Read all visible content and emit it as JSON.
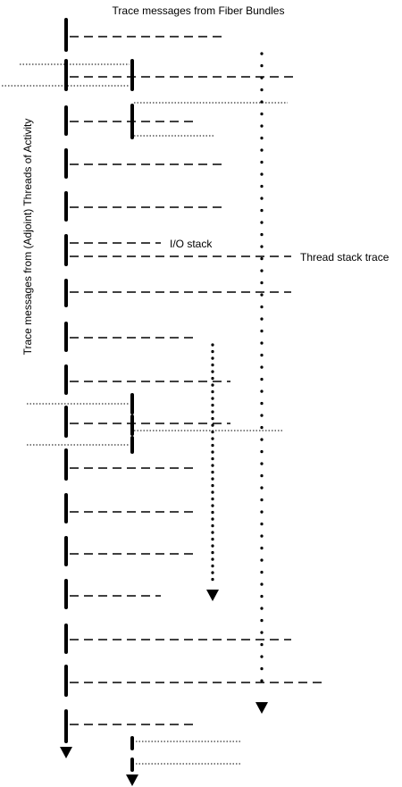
{
  "labels": {
    "fiber_bundles": "Trace messages from Fiber Bundles",
    "adjoint_threads": "Trace messages from (Adjoint) Threads of Activity",
    "io_stack": "I/O stack",
    "thread_stack_trace": "Thread stack trace"
  },
  "colors": {
    "ink": "#000000",
    "background": "#ffffff"
  }
}
